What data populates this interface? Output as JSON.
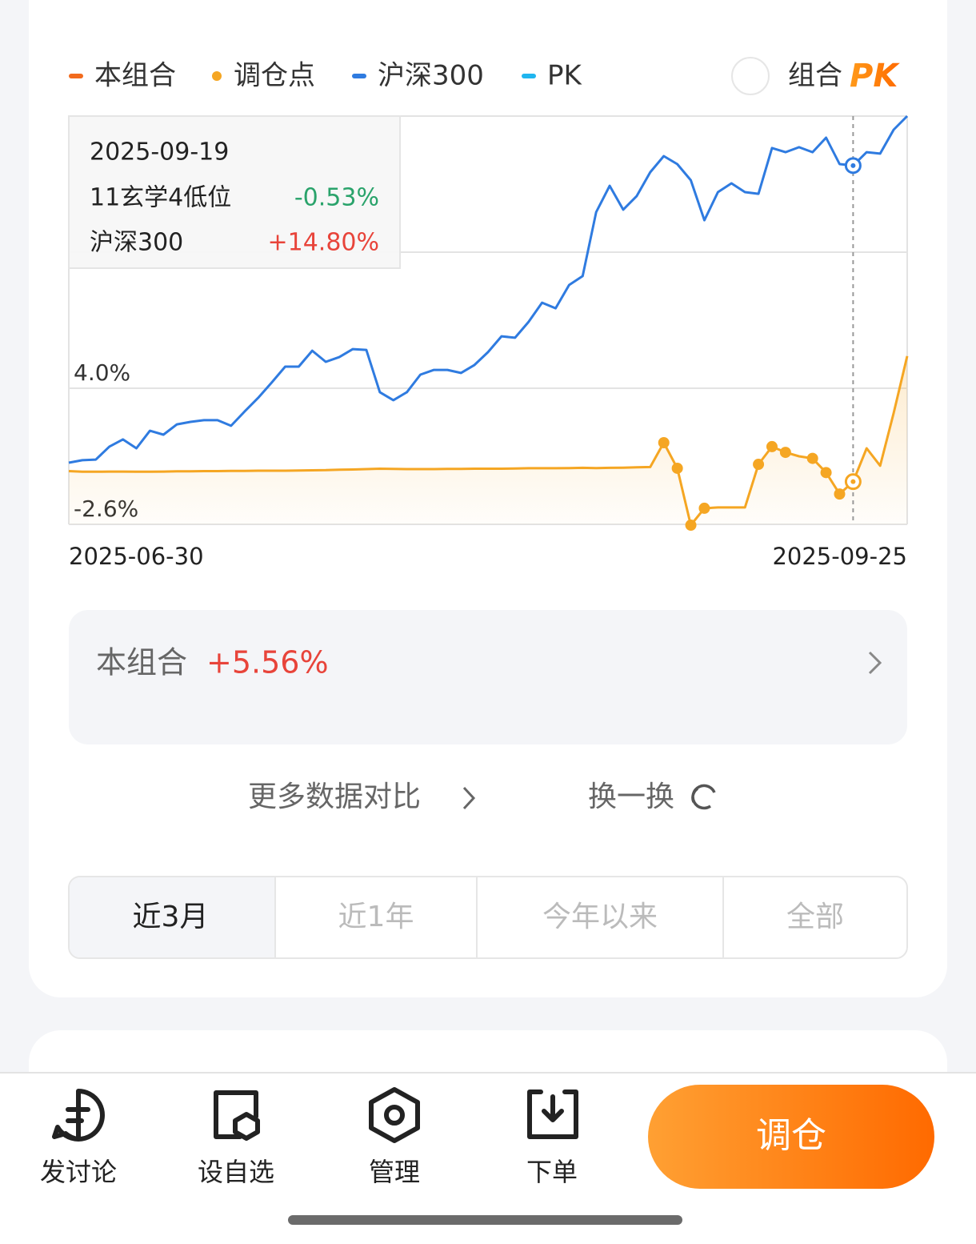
{
  "legend_toggle": {
    "label": "组合",
    "badge": "PK"
  },
  "chart_data": {
    "type": "line",
    "categories": [
      "2025-06-30",
      null,
      null,
      null,
      null,
      null,
      null,
      null,
      null,
      null,
      null,
      null,
      null,
      null,
      null,
      null,
      null,
      null,
      null,
      null,
      null,
      null,
      null,
      null,
      null,
      null,
      null,
      null,
      null,
      null,
      null,
      null,
      null,
      null,
      null,
      null,
      null,
      null,
      null,
      null,
      null,
      null,
      null,
      null,
      null,
      null,
      null,
      null,
      null,
      null,
      null,
      null,
      null,
      null,
      null,
      null,
      null,
      null,
      null,
      null,
      null,
      null,
      "2025-09-25"
    ],
    "series": [
      {
        "name": "本组合",
        "color": "#f5a623",
        "legend_color": "#f26b1d",
        "values": [
          -0.02,
          -0.05,
          -0.05,
          -0.04,
          -0.04,
          -0.05,
          -0.05,
          -0.04,
          -0.03,
          -0.03,
          -0.02,
          -0.02,
          -0.01,
          -0.01,
          0.0,
          0.0,
          0.0,
          0.01,
          0.02,
          0.03,
          0.05,
          0.06,
          0.08,
          0.1,
          0.09,
          0.08,
          0.08,
          0.08,
          0.09,
          0.09,
          0.1,
          0.1,
          0.1,
          0.11,
          0.12,
          0.12,
          0.12,
          0.13,
          0.14,
          0.13,
          0.14,
          0.15,
          0.17,
          0.18,
          1.36,
          0.12,
          -2.64,
          -1.82,
          -1.78,
          -1.78,
          -1.78,
          0.31,
          1.17,
          0.89,
          0.7,
          0.6,
          -0.09,
          -1.13,
          -0.53,
          1.09,
          0.24,
          2.8,
          5.56
        ]
      },
      {
        "name": "调仓点",
        "color": "#f5a623",
        "values": [
          null,
          null,
          null,
          null,
          null,
          null,
          null,
          null,
          null,
          null,
          null,
          null,
          null,
          null,
          null,
          null,
          null,
          null,
          null,
          null,
          null,
          null,
          null,
          null,
          null,
          null,
          null,
          null,
          null,
          null,
          null,
          null,
          null,
          null,
          null,
          null,
          null,
          null,
          null,
          null,
          null,
          null,
          null,
          null,
          1.36,
          0.12,
          -2.64,
          -1.82,
          null,
          null,
          null,
          0.31,
          1.17,
          0.89,
          null,
          0.6,
          -0.09,
          -1.13,
          null,
          null,
          null,
          null,
          null
        ]
      },
      {
        "name": "沪深300",
        "color": "#2f7be0",
        "values": [
          0.39,
          0.51,
          0.54,
          1.17,
          1.52,
          1.09,
          1.94,
          1.75,
          2.25,
          2.37,
          2.45,
          2.45,
          2.18,
          2.87,
          3.53,
          4.27,
          5.05,
          5.05,
          5.82,
          5.28,
          5.51,
          5.9,
          5.86,
          3.81,
          3.42,
          3.81,
          4.66,
          4.89,
          4.89,
          4.74,
          5.13,
          5.75,
          6.52,
          6.45,
          7.22,
          8.15,
          7.88,
          9.01,
          9.44,
          12.54,
          13.82,
          12.66,
          13.32,
          14.48,
          15.26,
          14.87,
          14.09,
          12.15,
          13.51,
          13.94,
          13.51,
          13.43,
          15.65,
          15.45,
          15.69,
          15.45,
          16.15,
          14.87,
          14.8,
          15.45,
          15.38,
          16.54,
          17.2
        ]
      }
    ],
    "legend_only": [
      {
        "name": "PK",
        "color": "#1fb5ef"
      }
    ],
    "ylim": [
      -2.6,
      17.2
    ],
    "yticks": [
      {
        "value": 4,
        "label": "4.0%"
      },
      {
        "value": -2.6,
        "label": "-2.6%"
      }
    ],
    "ygrid": [
      -2.6,
      4,
      10.6,
      17.2
    ],
    "tooltip": {
      "date": "2025-09-19",
      "rows": [
        {
          "name": "11玄学4低位",
          "value": "-0.53%",
          "color": "#2aa36b"
        },
        {
          "name": "沪深300",
          "value": "+14.80%",
          "color": "#e8443a"
        }
      ]
    }
  },
  "summary": {
    "label": "本组合",
    "value": "+5.56%"
  },
  "actions": {
    "compare": "更多数据对比",
    "swap": "换一换"
  },
  "tabs": [
    "近3月",
    "近1年",
    "今年以来",
    "全部"
  ],
  "toolbar": [
    "发讨论",
    "设自选",
    "管理",
    "下单"
  ],
  "primary_button": "调仓"
}
